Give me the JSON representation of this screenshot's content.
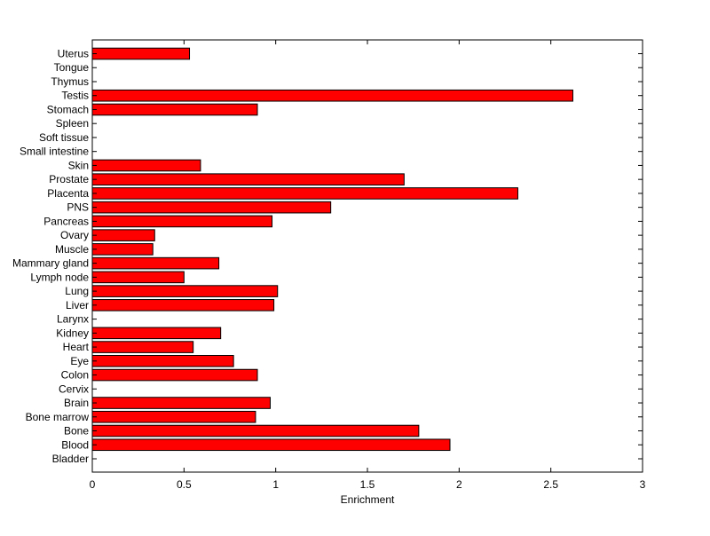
{
  "chart_data": {
    "type": "bar",
    "orientation": "horizontal",
    "title": "",
    "xlabel": "Enrichment",
    "ylabel": "",
    "xlim": [
      0,
      3
    ],
    "xticks": [
      0,
      0.5,
      1,
      1.5,
      2,
      2.5,
      3
    ],
    "xtick_labels": [
      "0",
      "0.5",
      "1",
      "1.5",
      "2",
      "2.5",
      "3"
    ],
    "grid": false,
    "legend": "none",
    "bar_color": "#ff0000",
    "bar_edge_color": "#000000",
    "categories": [
      "Bladder",
      "Blood",
      "Bone",
      "Bone marrow",
      "Brain",
      "Cervix",
      "Colon",
      "Eye",
      "Heart",
      "Kidney",
      "Larynx",
      "Liver",
      "Lung",
      "Lymph node",
      "Mammary gland",
      "Muscle",
      "Ovary",
      "Pancreas",
      "PNS",
      "Placenta",
      "Prostate",
      "Skin",
      "Small intestine",
      "Soft tissue",
      "Spleen",
      "Stomach",
      "Testis",
      "Thymus",
      "Tongue",
      "Uterus"
    ],
    "values": [
      0,
      1.95,
      1.78,
      0.89,
      0.97,
      0,
      0.9,
      0.77,
      0.55,
      0.7,
      0,
      0.99,
      1.01,
      0.5,
      0.69,
      0.33,
      0.34,
      0.98,
      1.3,
      2.32,
      1.7,
      0.59,
      0,
      0,
      0,
      0.9,
      2.62,
      0,
      0,
      0.53
    ]
  }
}
